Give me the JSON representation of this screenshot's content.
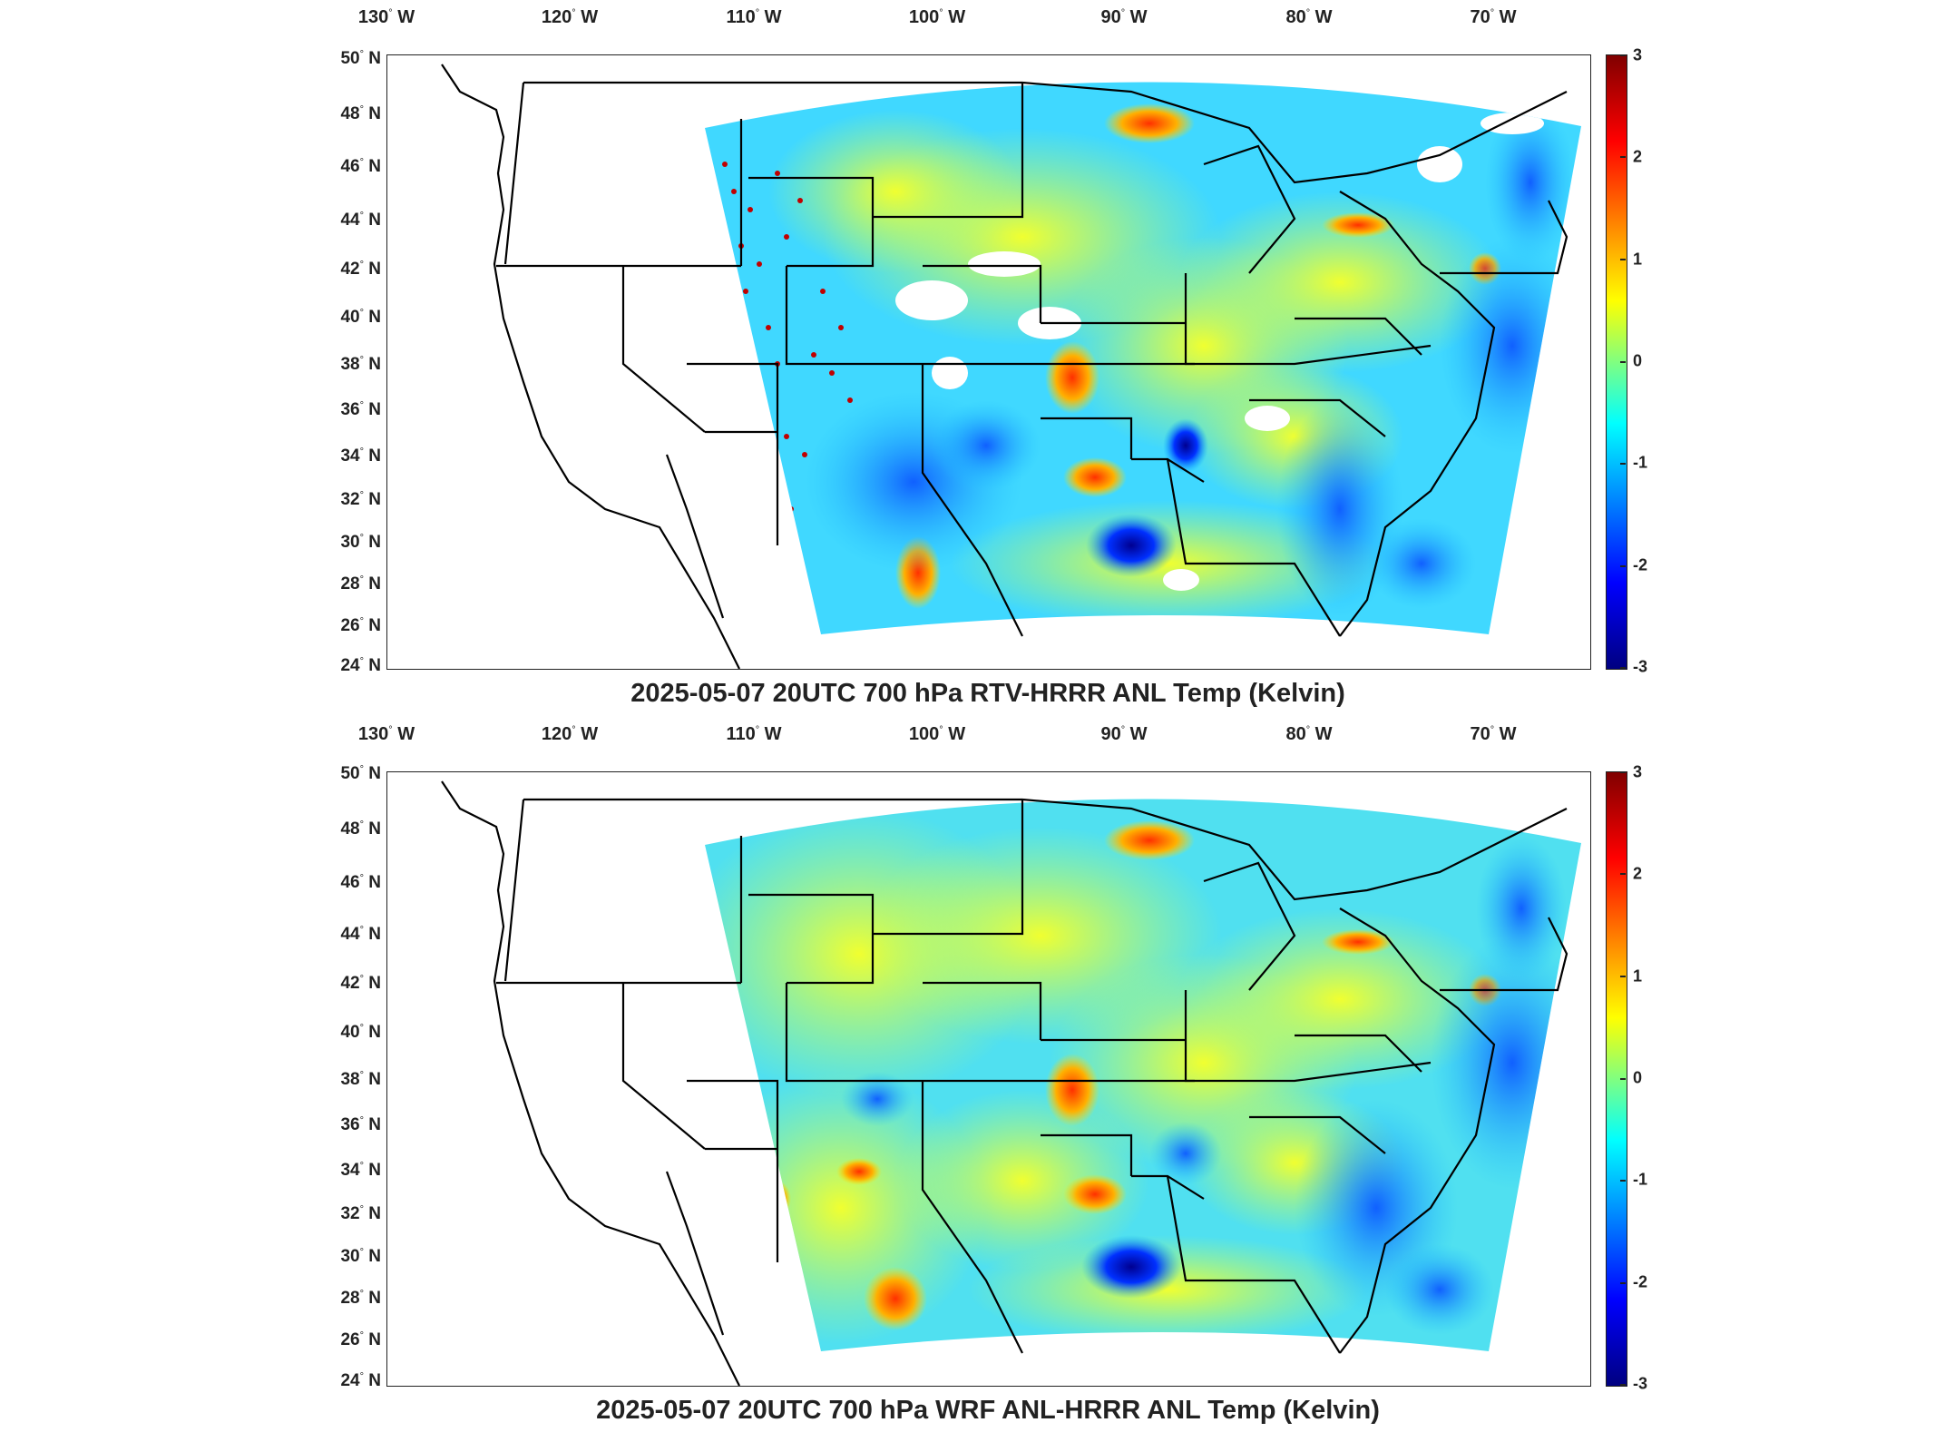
{
  "panels": [
    {
      "title": "2025-05-07 20UTC 700 hPa RTV-HRRR ANL Temp (Kelvin)",
      "lon_labels": [
        "130",
        "120",
        "110",
        "100",
        "90",
        "80",
        "70"
      ],
      "lon_suffix": "W",
      "lat_labels": [
        "50",
        "48",
        "46",
        "44",
        "42",
        "40",
        "38",
        "36",
        "34",
        "32",
        "30",
        "28",
        "26",
        "24"
      ],
      "lat_suffix": "N",
      "colorbar_ticks": [
        "3",
        "2",
        "1",
        "0",
        "-1",
        "-2",
        "-3"
      ]
    },
    {
      "title": "2025-05-07 20UTC 700 hPa WRF ANL-HRRR ANL Temp (Kelvin)",
      "lon_labels": [
        "130",
        "120",
        "110",
        "100",
        "90",
        "80",
        "70"
      ],
      "lon_suffix": "W",
      "lat_labels": [
        "50",
        "48",
        "46",
        "44",
        "42",
        "40",
        "38",
        "36",
        "34",
        "32",
        "30",
        "28",
        "26",
        "24"
      ],
      "lat_suffix": "N",
      "colorbar_ticks": [
        "3",
        "2",
        "1",
        "0",
        "-1",
        "-2",
        "-3"
      ]
    }
  ],
  "map": {
    "colormap": "jet",
    "colorbar_range": [
      -3,
      3
    ],
    "field_base_color": "#3fd9ff",
    "coastline_color": "#000000"
  }
}
